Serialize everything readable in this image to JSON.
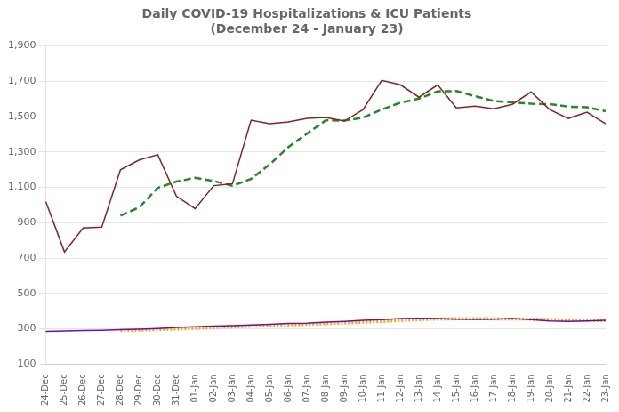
{
  "chart_data": {
    "type": "line",
    "title": "Daily COVID-19 Hospitalizations & ICU Patients",
    "subtitle": "(December 24 - January 23)",
    "categories": [
      "24-Dec",
      "25-Dec",
      "26-Dec",
      "27-Dec",
      "28-Dec",
      "29-Dec",
      "30-Dec",
      "31-Dec",
      "01-Jan",
      "02-Jan",
      "03-Jan",
      "04-Jan",
      "05-Jan",
      "06-Jan",
      "07-Jan",
      "08-Jan",
      "09-Jan",
      "10-Jan",
      "11-Jan",
      "12-Jan",
      "13-Jan",
      "14-Jan",
      "15-Jan",
      "16-Jan",
      "17-Jan",
      "18-Jan",
      "19-Jan",
      "20-Jan",
      "21-Jan",
      "22-Jan",
      "23-Jan"
    ],
    "series": [
      {
        "color": "#8B2020",
        "line_style": "solid",
        "values": [
          1020,
          735,
          870,
          875,
          1200,
          1255,
          1285,
          1050,
          980,
          1110,
          1120,
          1480,
          1460,
          1470,
          1490,
          1495,
          1475,
          1540,
          1705,
          1680,
          1610,
          1680,
          1550,
          1560,
          1545,
          1570,
          1640,
          1540,
          1490,
          1525,
          1460
        ]
      },
      {
        "color": "#228B22",
        "line_style": "dashed",
        "values": [
          null,
          null,
          null,
          null,
          940,
          987,
          1097,
          1133,
          1154,
          1136,
          1109,
          1148,
          1230,
          1328,
          1404,
          1479,
          1478,
          1494,
          1541,
          1579,
          1602,
          1643,
          1645,
          1616,
          1589,
          1581,
          1573,
          1571,
          1557,
          1553,
          1531
        ]
      },
      {
        "color": "#6A0DAD",
        "line_style": "solid",
        "values": [
          285,
          288,
          290,
          292,
          295,
          298,
          302,
          308,
          312,
          315,
          318,
          322,
          325,
          330,
          332,
          338,
          342,
          348,
          352,
          358,
          360,
          358,
          355,
          353,
          355,
          358,
          352,
          345,
          342,
          345,
          348
        ]
      },
      {
        "color": "#FFA500",
        "line_style": "dotted",
        "values": [
          null,
          null,
          null,
          null,
          290,
          292.6,
          295.4,
          299,
          303,
          307,
          311,
          315,
          318.4,
          322,
          325.4,
          329.4,
          333.4,
          338,
          342.4,
          347.6,
          352,
          355.2,
          356.6,
          356.8,
          356.2,
          355.8,
          354.6,
          352.6,
          350.4,
          348.4,
          346.4
        ]
      }
    ],
    "ylim": [
      100,
      1900
    ],
    "yticks": [
      100,
      300,
      500,
      700,
      900,
      1100,
      1300,
      1500,
      1700,
      1900
    ],
    "grid": true
  }
}
